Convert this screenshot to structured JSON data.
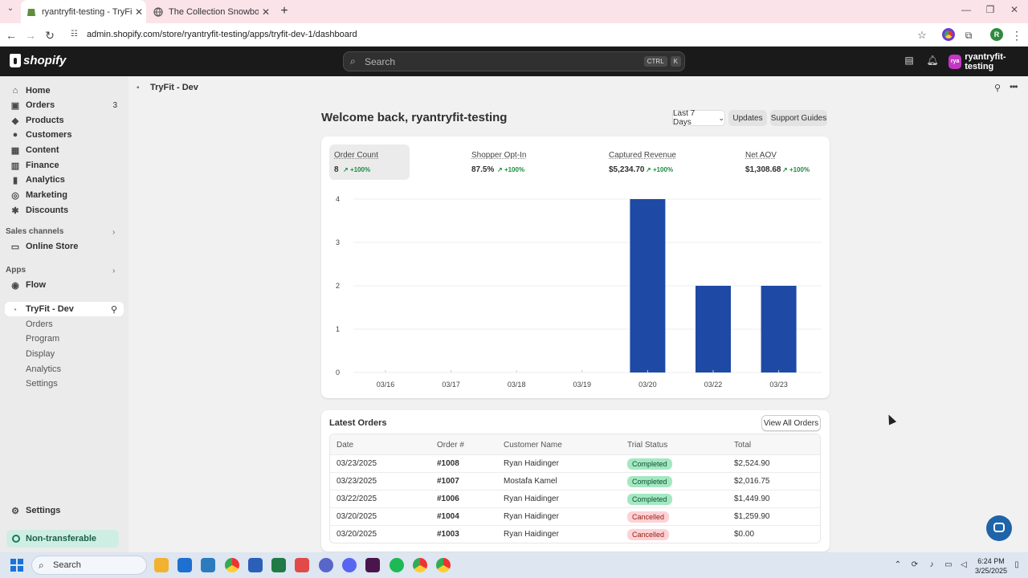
{
  "browser": {
    "tabs": [
      {
        "title": "ryantryfit-testing - TryFit - Dev"
      },
      {
        "title": "The Collection Snowboard: Liq"
      }
    ],
    "url": "admin.shopify.com/store/ryantryfit-testing/apps/tryfit-dev-1/dashboard",
    "profile_initial": "R"
  },
  "topbar": {
    "logo": "shopify",
    "search_placeholder": "Search",
    "shortcut_ctrl": "CTRL",
    "shortcut_k": "K",
    "store_initials": "rya",
    "store_name": "ryantryfit-testing"
  },
  "sidebar": {
    "items": [
      {
        "label": "Home",
        "icon": "home-icon"
      },
      {
        "label": "Orders",
        "icon": "orders-icon",
        "badge": "3"
      },
      {
        "label": "Products",
        "icon": "tag-icon"
      },
      {
        "label": "Customers",
        "icon": "person-icon"
      },
      {
        "label": "Content",
        "icon": "content-icon"
      },
      {
        "label": "Finance",
        "icon": "bank-icon"
      },
      {
        "label": "Analytics",
        "icon": "chart-icon"
      },
      {
        "label": "Marketing",
        "icon": "target-icon"
      },
      {
        "label": "Discounts",
        "icon": "discount-icon"
      }
    ],
    "sales_channels_label": "Sales channels",
    "online_store": "Online Store",
    "apps_label": "Apps",
    "flow": "Flow",
    "app_name": "TryFit - Dev",
    "app_sub_items": [
      "Orders",
      "Program",
      "Display",
      "Analytics",
      "Settings"
    ],
    "settings": "Settings",
    "non_transferable": "Non-transferable"
  },
  "app_header": {
    "title": "TryFit - Dev"
  },
  "dashboard": {
    "welcome": "Welcome back, ryantryfit-testing",
    "range_button": "Last 7 Days",
    "updates_button": "Updates",
    "support_button": "Support Guides",
    "metrics": [
      {
        "label": "Order Count",
        "value": "8",
        "change": "+100%"
      },
      {
        "label": "Shopper Opt-In",
        "value": "87.5%",
        "change": "+100%"
      },
      {
        "label": "Captured Revenue",
        "value": "$5,234.70",
        "change": "+100%"
      },
      {
        "label": "Net AOV",
        "value": "$1,308.68",
        "change": "+100%"
      }
    ]
  },
  "chart_data": {
    "type": "bar",
    "categories": [
      "03/16",
      "03/17",
      "03/18",
      "03/19",
      "03/20",
      "03/22",
      "03/23"
    ],
    "values": [
      0,
      0,
      0,
      0,
      4,
      2,
      2
    ],
    "yticks": [
      0,
      1,
      2,
      3,
      4
    ],
    "ylim": [
      0,
      4
    ],
    "color": "#1e4aa5",
    "grid": true
  },
  "orders": {
    "title": "Latest Orders",
    "view_all": "View All Orders",
    "columns": [
      "Date",
      "Order #",
      "Customer Name",
      "Trial Status",
      "Total"
    ],
    "rows": [
      {
        "date": "03/23/2025",
        "order": "#1008",
        "customer": "Ryan Haidinger",
        "status": "Completed",
        "total": "$2,524.90"
      },
      {
        "date": "03/23/2025",
        "order": "#1007",
        "customer": "Mostafa Kamel",
        "status": "Completed",
        "total": "$2,016.75"
      },
      {
        "date": "03/22/2025",
        "order": "#1006",
        "customer": "Ryan Haidinger",
        "status": "Completed",
        "total": "$1,449.90"
      },
      {
        "date": "03/20/2025",
        "order": "#1004",
        "customer": "Ryan Haidinger",
        "status": "Cancelled",
        "total": "$1,259.90"
      },
      {
        "date": "03/20/2025",
        "order": "#1003",
        "customer": "Ryan Haidinger",
        "status": "Cancelled",
        "total": "$0.00"
      }
    ]
  },
  "taskbar": {
    "search_label": "Search",
    "time": "6:24 PM",
    "date": "3/25/2025"
  }
}
